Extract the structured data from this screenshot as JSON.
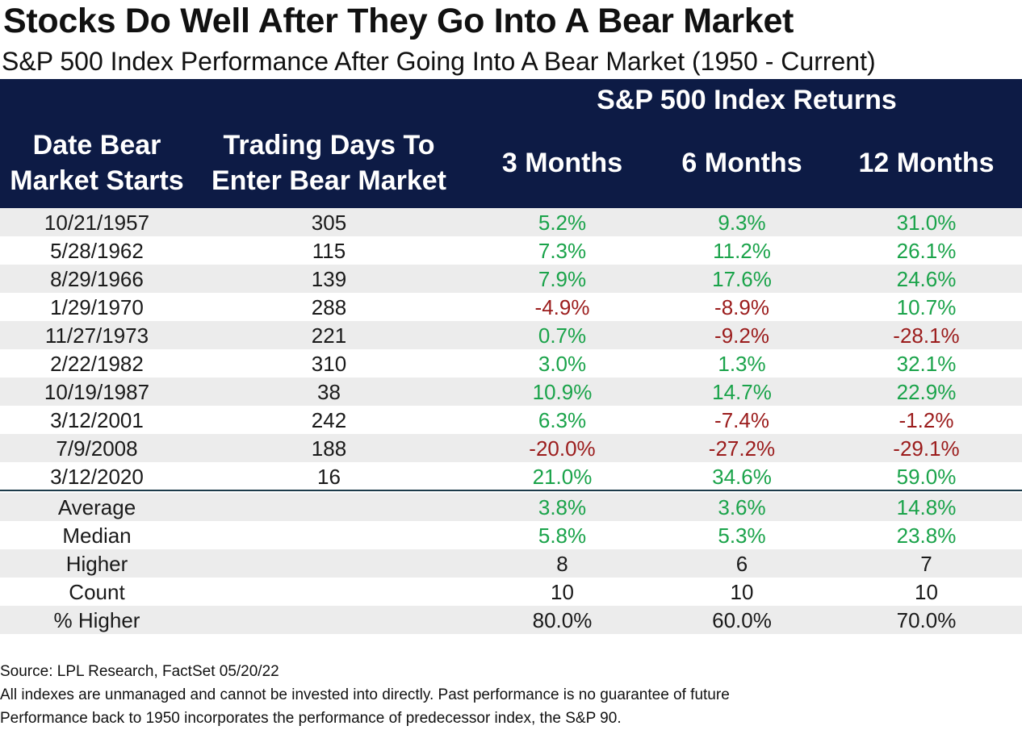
{
  "title": "Stocks Do Well After They Go Into A Bear Market",
  "subtitle": "S&P 500 Index Performance After Going Into A Bear Market (1950 - Current)",
  "colors": {
    "header_bg": "#0d1b45",
    "positive": "#1aa34a",
    "negative": "#9b1c1c",
    "row_shade": "#ececec"
  },
  "chart_data": {
    "type": "table",
    "group_header": "S&P 500 Index Returns",
    "columns": [
      [
        "Date Bear",
        "Market Starts"
      ],
      [
        "Trading Days To",
        "Enter Bear Market"
      ],
      [
        "3 Months"
      ],
      [
        "6 Months"
      ],
      [
        "12 Months"
      ]
    ],
    "rows": [
      {
        "date": "10/21/1957",
        "days": "305",
        "m3": "5.2%",
        "m6": "9.3%",
        "m12": "31.0%"
      },
      {
        "date": "5/28/1962",
        "days": "115",
        "m3": "7.3%",
        "m6": "11.2%",
        "m12": "26.1%"
      },
      {
        "date": "8/29/1966",
        "days": "139",
        "m3": "7.9%",
        "m6": "17.6%",
        "m12": "24.6%"
      },
      {
        "date": "1/29/1970",
        "days": "288",
        "m3": "-4.9%",
        "m6": "-8.9%",
        "m12": "10.7%"
      },
      {
        "date": "11/27/1973",
        "days": "221",
        "m3": "0.7%",
        "m6": "-9.2%",
        "m12": "-28.1%"
      },
      {
        "date": "2/22/1982",
        "days": "310",
        "m3": "3.0%",
        "m6": "1.3%",
        "m12": "32.1%"
      },
      {
        "date": "10/19/1987",
        "days": "38",
        "m3": "10.9%",
        "m6": "14.7%",
        "m12": "22.9%"
      },
      {
        "date": "3/12/2001",
        "days": "242",
        "m3": "6.3%",
        "m6": "-7.4%",
        "m12": "-1.2%"
      },
      {
        "date": "7/9/2008",
        "days": "188",
        "m3": "-20.0%",
        "m6": "-27.2%",
        "m12": "-29.1%"
      },
      {
        "date": "3/12/2020",
        "days": "16",
        "m3": "21.0%",
        "m6": "34.6%",
        "m12": "59.0%"
      }
    ],
    "summary": [
      {
        "label": "Average",
        "m3": "3.8%",
        "m6": "3.6%",
        "m12": "14.8%",
        "colored": true
      },
      {
        "label": "Median",
        "m3": "5.8%",
        "m6": "5.3%",
        "m12": "23.8%",
        "colored": true
      },
      {
        "label": "Higher",
        "m3": "8",
        "m6": "6",
        "m12": "7",
        "colored": false
      },
      {
        "label": "Count",
        "m3": "10",
        "m6": "10",
        "m12": "10",
        "colored": false
      },
      {
        "label": "% Higher",
        "m3": "80.0%",
        "m6": "60.0%",
        "m12": "70.0%",
        "colored": false
      }
    ]
  },
  "notes": [
    "Source: LPL Research, FactSet 05/20/22",
    "All indexes are unmanaged and cannot be invested into directly. Past performance is no guarantee of future",
    "Performance back to 1950 incorporates the performance of predecessor index, the S&P 90."
  ]
}
